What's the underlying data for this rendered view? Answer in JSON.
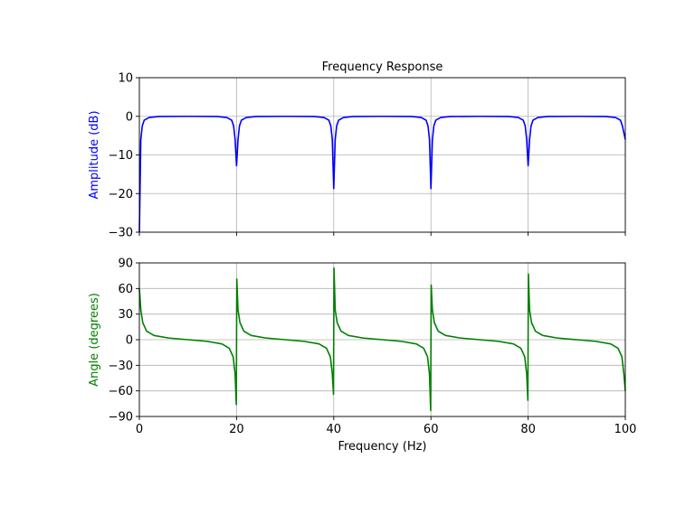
{
  "chart_data": [
    {
      "type": "line",
      "title": "Frequency Response",
      "xlabel": "",
      "ylabel": "Amplitude (dB)",
      "ylabel_color": "#0000ff",
      "line_color": "#0000ff",
      "xlim": [
        0,
        100
      ],
      "ylim": [
        -30,
        10
      ],
      "xticks": [
        0,
        20,
        40,
        60,
        80,
        100
      ],
      "xtick_labels_visible": false,
      "yticks": [
        10,
        0,
        -10,
        -20,
        -30
      ],
      "ytick_labels": [
        "10",
        "0",
        "−10",
        "−20",
        "−30"
      ],
      "grid": true,
      "x": [
        0,
        0.3,
        0.6,
        1,
        2,
        4,
        10,
        16,
        18,
        19,
        19.4,
        19.7,
        20,
        20.3,
        20.6,
        21,
        22,
        24,
        30,
        36,
        38,
        39,
        39.4,
        39.7,
        40,
        40.3,
        40.6,
        41,
        42,
        44,
        50,
        56,
        58,
        59,
        59.4,
        59.7,
        60,
        60.3,
        60.6,
        61,
        62,
        64,
        70,
        76,
        78,
        79,
        79.4,
        79.7,
        80,
        80.3,
        80.6,
        81,
        82,
        84,
        90,
        96,
        98,
        99,
        99.4,
        100
      ],
      "y": [
        -30,
        -6,
        -2.5,
        -1,
        -0.3,
        -0.05,
        0,
        -0.05,
        -0.3,
        -1,
        -2.5,
        -6,
        -12.8,
        -6,
        -2.5,
        -1,
        -0.3,
        -0.05,
        0,
        -0.05,
        -0.3,
        -1,
        -2.5,
        -6,
        -18.7,
        -6,
        -2.5,
        -1,
        -0.3,
        -0.05,
        0,
        -0.05,
        -0.3,
        -1,
        -2.5,
        -6,
        -18.7,
        -6,
        -2.5,
        -1,
        -0.3,
        -0.05,
        0,
        -0.05,
        -0.3,
        -1,
        -2.5,
        -6,
        -12.8,
        -6,
        -2.5,
        -1,
        -0.3,
        -0.05,
        0,
        -0.05,
        -0.3,
        -1,
        -2.5,
        -6
      ]
    },
    {
      "type": "line",
      "title": "",
      "xlabel": "Frequency (Hz)",
      "ylabel": "Angle (degrees)",
      "ylabel_color": "#008000",
      "line_color": "#008000",
      "xlim": [
        0,
        100
      ],
      "ylim": [
        -90,
        90
      ],
      "xticks": [
        0,
        20,
        40,
        60,
        80,
        100
      ],
      "xtick_labels": [
        "0",
        "20",
        "40",
        "60",
        "80",
        "100"
      ],
      "yticks": [
        90,
        60,
        30,
        0,
        -30,
        -60,
        -90
      ],
      "ytick_labels": [
        "90",
        "60",
        "30",
        "0",
        "−30",
        "−60",
        "−90"
      ],
      "grid": true,
      "x": [
        0,
        0.3,
        0.7,
        1.5,
        3,
        6,
        10,
        14,
        17,
        18.5,
        19.3,
        19.7,
        19.95,
        20.05,
        20.3,
        20.7,
        21.5,
        23,
        26,
        30,
        34,
        37,
        38.5,
        39.3,
        39.7,
        39.95,
        40.05,
        40.3,
        40.7,
        41.5,
        43,
        46,
        50,
        54,
        57,
        58.5,
        59.3,
        59.7,
        59.95,
        60.05,
        60.3,
        60.7,
        61.5,
        63,
        66,
        70,
        74,
        77,
        78.5,
        79.3,
        79.7,
        79.95,
        80.05,
        80.3,
        80.7,
        81.5,
        83,
        86,
        90,
        94,
        97,
        98.5,
        99.3,
        99.7,
        100
      ],
      "y": [
        60,
        35,
        20,
        10,
        5,
        2,
        0,
        -2,
        -5,
        -10,
        -20,
        -40,
        -76,
        71,
        35,
        20,
        10,
        5,
        2,
        0,
        -2,
        -5,
        -10,
        -20,
        -40,
        -64,
        84,
        35,
        20,
        10,
        5,
        2,
        0,
        -2,
        -5,
        -10,
        -20,
        -40,
        -83,
        64,
        35,
        20,
        10,
        5,
        2,
        0,
        -2,
        -5,
        -10,
        -20,
        -40,
        -71,
        77,
        35,
        20,
        10,
        5,
        2,
        0,
        -2,
        -5,
        -10,
        -20,
        -40,
        -60
      ]
    }
  ]
}
